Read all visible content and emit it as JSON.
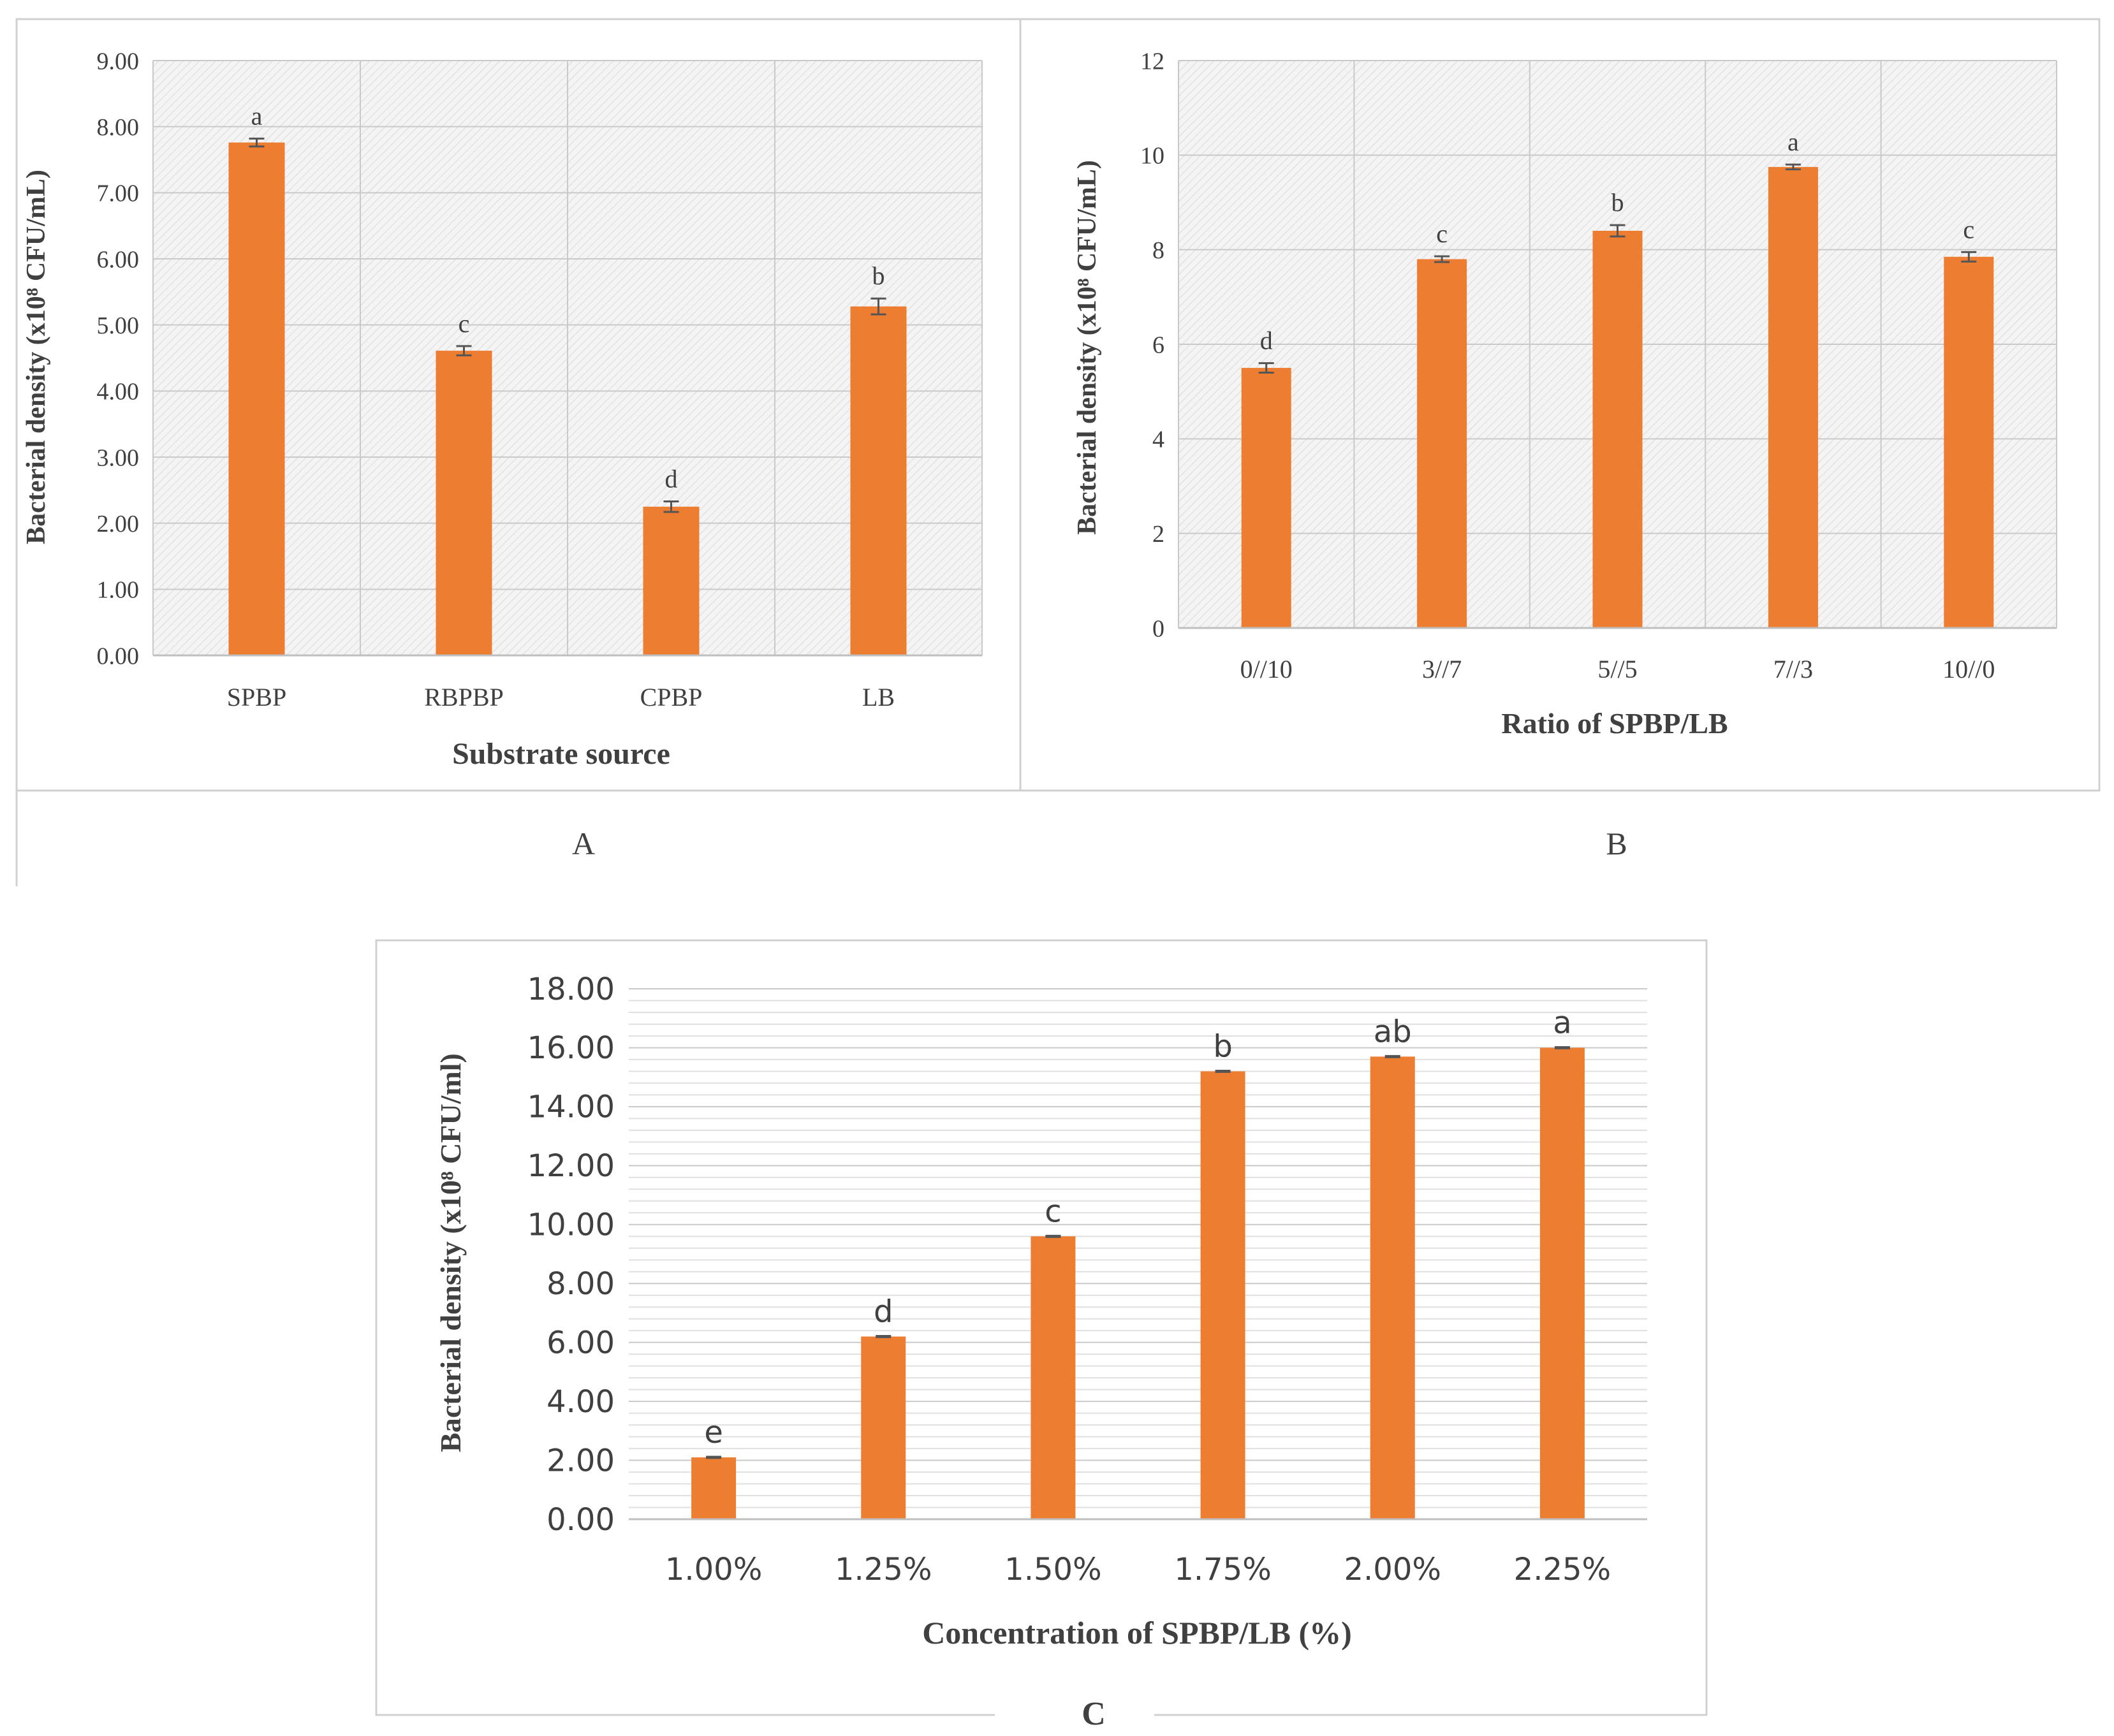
{
  "colors": {
    "bar": "#ED7D31",
    "error": "#555555",
    "grid": "#c9c9c9",
    "text": "#404040",
    "frame": "#d0d0d0"
  },
  "panels": [
    {
      "caption": "A"
    },
    {
      "caption": "B"
    },
    {
      "caption": "C"
    }
  ],
  "chart_data": [
    {
      "id": "A",
      "type": "bar",
      "title": "",
      "xlabel": "Substrate source",
      "ylabel": "Bacterial density (x10⁸ CFU/mL)",
      "categories": [
        "SPBP",
        "RBPBP",
        "CPBP",
        "LB"
      ],
      "values": [
        7.76,
        4.61,
        2.25,
        5.28
      ],
      "errors": [
        0.06,
        0.07,
        0.08,
        0.12
      ],
      "letters": [
        "a",
        "c",
        "d",
        "b"
      ],
      "ylim": [
        0,
        9
      ],
      "yticks": [
        "0.00",
        "1.00",
        "2.00",
        "3.00",
        "4.00",
        "5.00",
        "6.00",
        "7.00",
        "8.00",
        "9.00"
      ],
      "grid": true
    },
    {
      "id": "B",
      "type": "bar",
      "title": "",
      "xlabel": "Ratio of SPBP/LB",
      "ylabel": "Bacterial density (x10⁸ CFU/mL)",
      "categories": [
        "0//10",
        "3//7",
        "5//5",
        "7//3",
        "10//0"
      ],
      "values": [
        5.5,
        7.8,
        8.4,
        9.75,
        7.85
      ],
      "errors": [
        0.1,
        0.06,
        0.12,
        0.05,
        0.1
      ],
      "letters": [
        "d",
        "c",
        "b",
        "a",
        "c"
      ],
      "ylim": [
        0,
        12
      ],
      "yticks": [
        "0",
        "2",
        "4",
        "6",
        "8",
        "10",
        "12"
      ],
      "grid": true
    },
    {
      "id": "C",
      "type": "bar",
      "title": "",
      "xlabel": "Concentration of SPBP/LB (%)",
      "ylabel": "Bacterial density (x10⁸ CFU/ml)",
      "categories": [
        "1.00%",
        "1.25%",
        "1.50%",
        "1.75%",
        "2.00%",
        "2.25%"
      ],
      "values": [
        2.1,
        6.2,
        9.6,
        15.2,
        15.7,
        16.0
      ],
      "errors": [
        0.02,
        0.02,
        0.02,
        0.02,
        0.02,
        0.02
      ],
      "letters": [
        "e",
        "d",
        "c",
        "b",
        "ab",
        "a"
      ],
      "ylim": [
        0,
        18
      ],
      "yticks": [
        "0.00",
        "2.00",
        "4.00",
        "6.00",
        "8.00",
        "10.00",
        "12.00",
        "14.00",
        "16.00",
        "18.00"
      ],
      "grid": true
    }
  ]
}
